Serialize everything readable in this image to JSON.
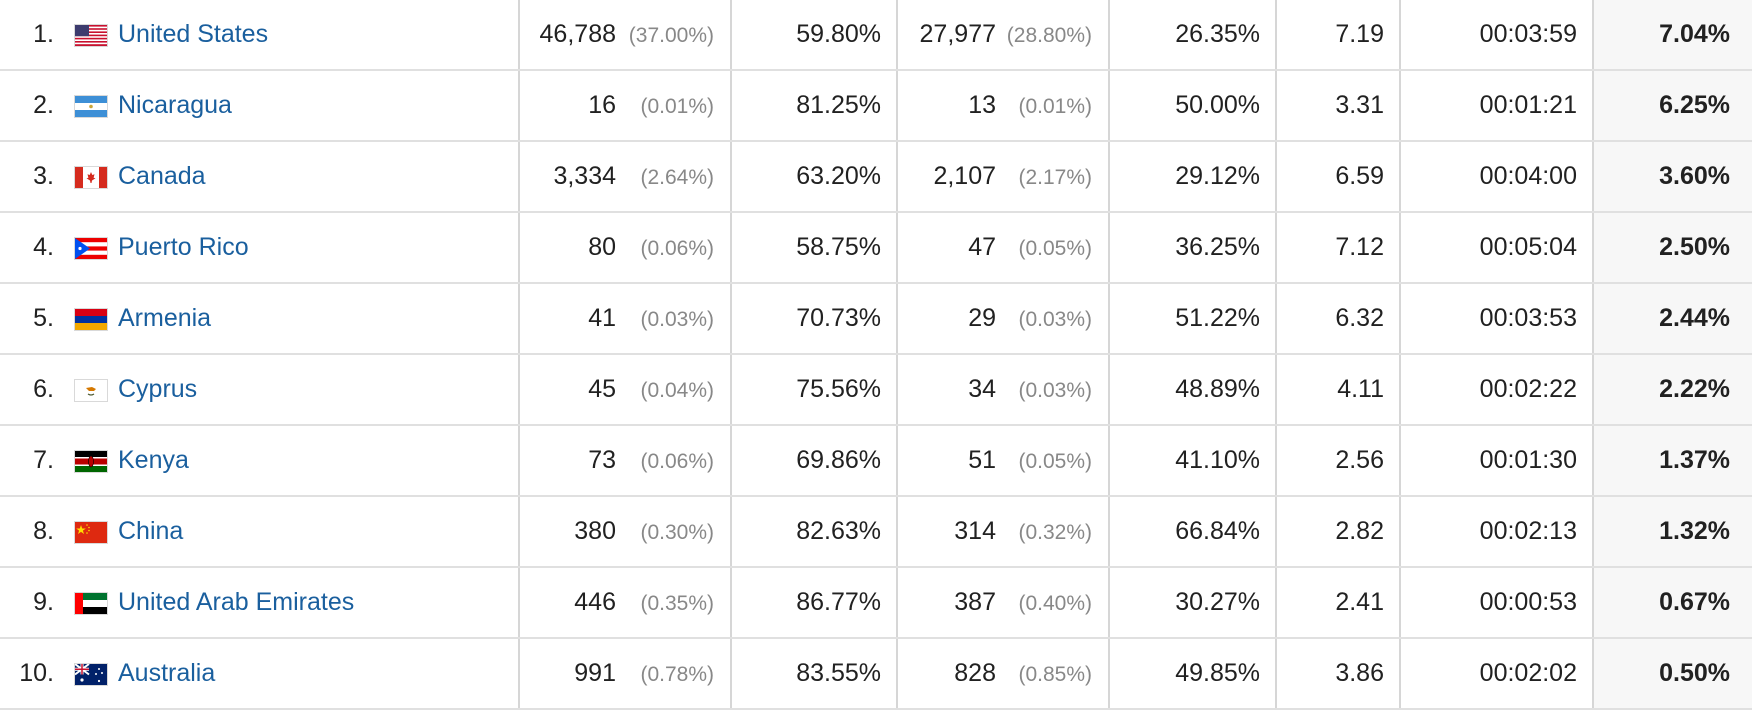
{
  "rows": [
    {
      "rank": "1.",
      "flag": "us-flag-icon",
      "country": "United States",
      "sessions": "46,788",
      "sessions_pct": "(37.00%)",
      "new_sessions_pct": "59.80%",
      "new_users": "27,977",
      "new_users_pct": "(28.80%)",
      "bounce_rate": "26.35%",
      "pages_per_session": "7.19",
      "avg_duration": "00:03:59",
      "conversion_rate": "7.04%"
    },
    {
      "rank": "2.",
      "flag": "ni-flag-icon",
      "country": "Nicaragua",
      "sessions": "16",
      "sessions_pct": "(0.01%)",
      "new_sessions_pct": "81.25%",
      "new_users": "13",
      "new_users_pct": "(0.01%)",
      "bounce_rate": "50.00%",
      "pages_per_session": "3.31",
      "avg_duration": "00:01:21",
      "conversion_rate": "6.25%"
    },
    {
      "rank": "3.",
      "flag": "ca-flag-icon",
      "country": "Canada",
      "sessions": "3,334",
      "sessions_pct": "(2.64%)",
      "new_sessions_pct": "63.20%",
      "new_users": "2,107",
      "new_users_pct": "(2.17%)",
      "bounce_rate": "29.12%",
      "pages_per_session": "6.59",
      "avg_duration": "00:04:00",
      "conversion_rate": "3.60%"
    },
    {
      "rank": "4.",
      "flag": "pr-flag-icon",
      "country": "Puerto Rico",
      "sessions": "80",
      "sessions_pct": "(0.06%)",
      "new_sessions_pct": "58.75%",
      "new_users": "47",
      "new_users_pct": "(0.05%)",
      "bounce_rate": "36.25%",
      "pages_per_session": "7.12",
      "avg_duration": "00:05:04",
      "conversion_rate": "2.50%"
    },
    {
      "rank": "5.",
      "flag": "am-flag-icon",
      "country": "Armenia",
      "sessions": "41",
      "sessions_pct": "(0.03%)",
      "new_sessions_pct": "70.73%",
      "new_users": "29",
      "new_users_pct": "(0.03%)",
      "bounce_rate": "51.22%",
      "pages_per_session": "6.32",
      "avg_duration": "00:03:53",
      "conversion_rate": "2.44%"
    },
    {
      "rank": "6.",
      "flag": "cy-flag-icon",
      "country": "Cyprus",
      "sessions": "45",
      "sessions_pct": "(0.04%)",
      "new_sessions_pct": "75.56%",
      "new_users": "34",
      "new_users_pct": "(0.03%)",
      "bounce_rate": "48.89%",
      "pages_per_session": "4.11",
      "avg_duration": "00:02:22",
      "conversion_rate": "2.22%"
    },
    {
      "rank": "7.",
      "flag": "ke-flag-icon",
      "country": "Kenya",
      "sessions": "73",
      "sessions_pct": "(0.06%)",
      "new_sessions_pct": "69.86%",
      "new_users": "51",
      "new_users_pct": "(0.05%)",
      "bounce_rate": "41.10%",
      "pages_per_session": "2.56",
      "avg_duration": "00:01:30",
      "conversion_rate": "1.37%"
    },
    {
      "rank": "8.",
      "flag": "cn-flag-icon",
      "country": "China",
      "sessions": "380",
      "sessions_pct": "(0.30%)",
      "new_sessions_pct": "82.63%",
      "new_users": "314",
      "new_users_pct": "(0.32%)",
      "bounce_rate": "66.84%",
      "pages_per_session": "2.82",
      "avg_duration": "00:02:13",
      "conversion_rate": "1.32%"
    },
    {
      "rank": "9.",
      "flag": "ae-flag-icon",
      "country": "United Arab Emirates",
      "sessions": "446",
      "sessions_pct": "(0.35%)",
      "new_sessions_pct": "86.77%",
      "new_users": "387",
      "new_users_pct": "(0.40%)",
      "bounce_rate": "30.27%",
      "pages_per_session": "2.41",
      "avg_duration": "00:00:53",
      "conversion_rate": "0.67%"
    },
    {
      "rank": "10.",
      "flag": "au-flag-icon",
      "country": "Australia",
      "sessions": "991",
      "sessions_pct": "(0.78%)",
      "new_sessions_pct": "83.55%",
      "new_users": "828",
      "new_users_pct": "(0.85%)",
      "bounce_rate": "49.85%",
      "pages_per_session": "3.86",
      "avg_duration": "00:02:02",
      "conversion_rate": "0.50%"
    }
  ],
  "colors": {
    "link": "#1a5f9e",
    "muted": "#888888",
    "divider": "#e0e0e0",
    "highlight_col_bg": "#f7f7f7"
  }
}
